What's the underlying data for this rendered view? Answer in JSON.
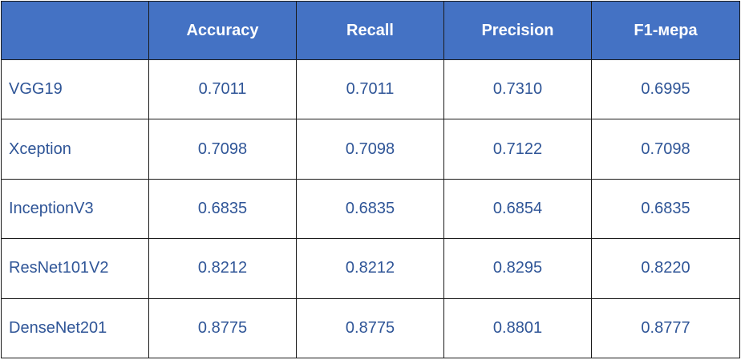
{
  "chart_data": {
    "type": "table",
    "columns": [
      "",
      "Accuracy",
      "Recall",
      "Precision",
      "F1-мера"
    ],
    "rows": [
      [
        "VGG19",
        "0.7011",
        "0.7011",
        "0.7310",
        "0.6995"
      ],
      [
        "Xception",
        "0.7098",
        "0.7098",
        "0.7122",
        "0.7098"
      ],
      [
        "InceptionV3",
        "0.6835",
        "0.6835",
        "0.6854",
        "0.6835"
      ],
      [
        "ResNet101V2",
        "0.8212",
        "0.8212",
        "0.8295",
        "0.8220"
      ],
      [
        "DenseNet201",
        "0.8775",
        "0.8775",
        "0.8801",
        "0.8777"
      ]
    ]
  },
  "colors": {
    "header_bg": "#4472c4",
    "header_text": "#ffffff",
    "cell_text": "#2f5597",
    "border": "#1a1a1a"
  }
}
